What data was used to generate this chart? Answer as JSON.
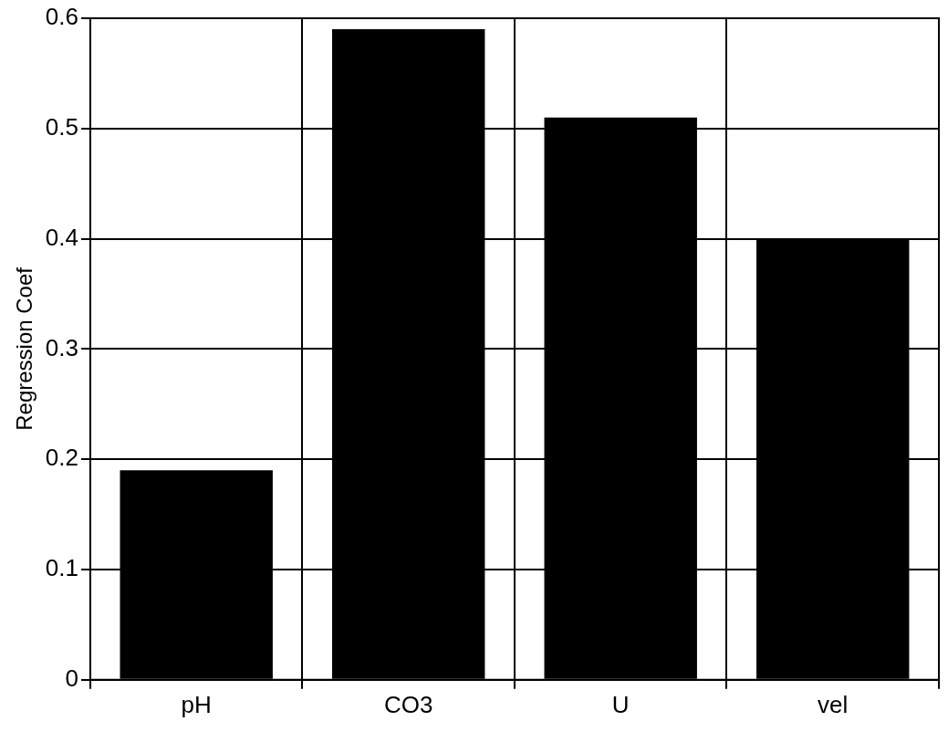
{
  "chart_data": {
    "type": "bar",
    "ylabel": "Regression Coef",
    "categories": [
      "pH",
      "CO3",
      "U",
      "vel"
    ],
    "values": [
      0.19,
      0.59,
      0.51,
      0.4
    ],
    "color": "#000000",
    "ylim": [
      0,
      0.6
    ],
    "yticks": [
      0,
      0.1,
      0.2,
      0.3,
      0.4,
      0.5,
      0.6
    ],
    "grid": true,
    "legend": false
  }
}
